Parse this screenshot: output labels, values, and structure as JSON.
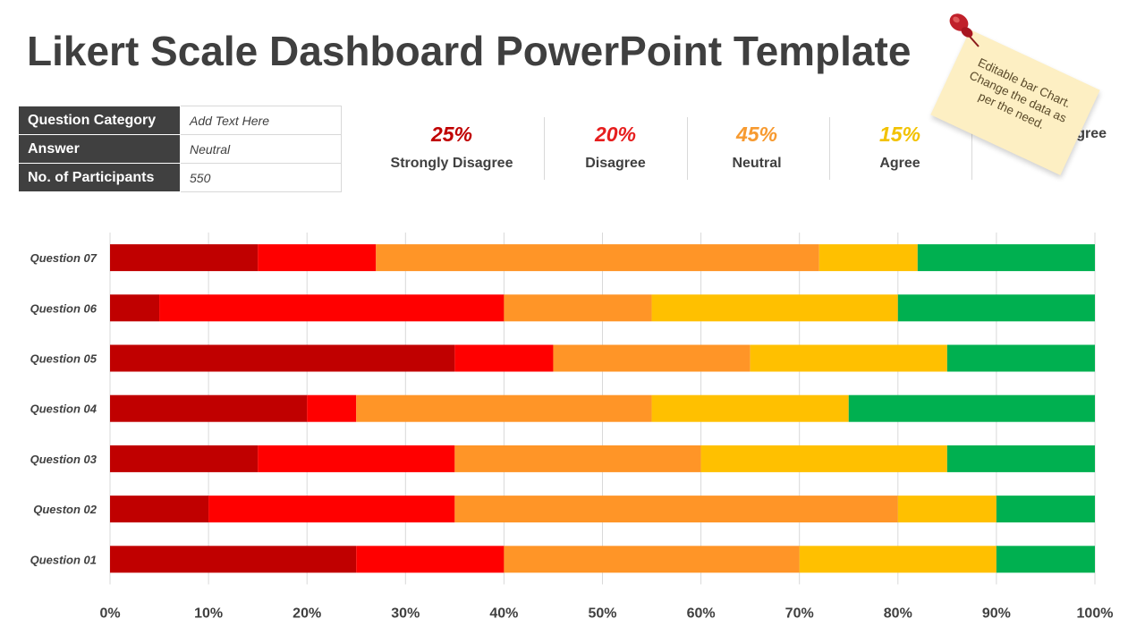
{
  "header": {
    "title": "Likert Scale Dashboard PowerPoint Template"
  },
  "info_table": [
    {
      "key": "Question Category",
      "value": "Add Text Here"
    },
    {
      "key": "Answer",
      "value": "Neutral"
    },
    {
      "key": "No. of Participants",
      "value": "550"
    }
  ],
  "summary": [
    {
      "pct": "25%",
      "label": "Strongly Disagree",
      "color": "#c00000"
    },
    {
      "pct": "20%",
      "label": "Disagree",
      "color": "#e61e1e"
    },
    {
      "pct": "45%",
      "label": "Neutral",
      "color": "#f79a30"
    },
    {
      "pct": "15%",
      "label": "Agree",
      "color": "#f2c200"
    },
    {
      "pct": "",
      "label": "Strongly Agree",
      "color": "#00b050"
    }
  ],
  "note": {
    "line1": "Editable bar Chart.",
    "line2": "Change the data as",
    "line3": "per the need."
  },
  "chart_data": {
    "type": "bar",
    "orientation": "horizontal",
    "stacked": "100%",
    "categories": [
      "Question 07",
      "Question 06",
      "Question 05",
      "Question 04",
      "Question 03",
      "Queston 02",
      "Question 01"
    ],
    "series": [
      {
        "name": "Strongly Disagree",
        "color": "#c00000",
        "values": [
          15,
          5,
          35,
          20,
          15,
          10,
          25
        ]
      },
      {
        "name": "Disagree",
        "color": "#ff0000",
        "values": [
          12,
          35,
          10,
          5,
          20,
          25,
          15
        ]
      },
      {
        "name": "Neutral",
        "color": "#ff9527",
        "values": [
          45,
          15,
          20,
          30,
          25,
          45,
          30
        ]
      },
      {
        "name": "Agree",
        "color": "#ffc000",
        "values": [
          10,
          25,
          20,
          20,
          25,
          10,
          20
        ]
      },
      {
        "name": "Strongly Agree",
        "color": "#00b050",
        "values": [
          18,
          20,
          15,
          25,
          15,
          10,
          10
        ]
      }
    ],
    "xlim": [
      0,
      100
    ],
    "xticks": [
      "0%",
      "10%",
      "20%",
      "30%",
      "40%",
      "50%",
      "60%",
      "70%",
      "80%",
      "90%",
      "100%"
    ],
    "grid": true
  }
}
